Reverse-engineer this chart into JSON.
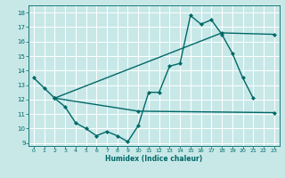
{
  "title": "",
  "xlabel": "Humidex (Indice chaleur)",
  "ylabel": "",
  "bg_color": "#c8e8e8",
  "line_color": "#006868",
  "grid_color": "#b0d8d8",
  "xlim": [
    -0.5,
    23.5
  ],
  "ylim": [
    8.8,
    18.5
  ],
  "yticks": [
    9,
    10,
    11,
    12,
    13,
    14,
    15,
    16,
    17,
    18
  ],
  "xticks": [
    0,
    1,
    2,
    3,
    4,
    5,
    6,
    7,
    8,
    9,
    10,
    11,
    12,
    13,
    14,
    15,
    16,
    17,
    18,
    19,
    20,
    21,
    22,
    23
  ],
  "line1_x": [
    0,
    1,
    2,
    3,
    4,
    5,
    6,
    7,
    8,
    9,
    10,
    11,
    12,
    13,
    14,
    15,
    16,
    17,
    18,
    19,
    20,
    21
  ],
  "line1_y": [
    13.5,
    12.8,
    12.1,
    11.5,
    10.4,
    10.0,
    9.5,
    9.8,
    9.5,
    9.1,
    10.2,
    12.5,
    12.5,
    14.3,
    14.5,
    17.8,
    17.2,
    17.5,
    16.5,
    15.2,
    13.5,
    12.1
  ],
  "line2_x": [
    2,
    10,
    23
  ],
  "line2_y": [
    12.1,
    11.2,
    11.1
  ],
  "line3_x": [
    2,
    18,
    23
  ],
  "line3_y": [
    12.1,
    16.6,
    16.5
  ],
  "marker": "D",
  "marker_size": 2.5
}
